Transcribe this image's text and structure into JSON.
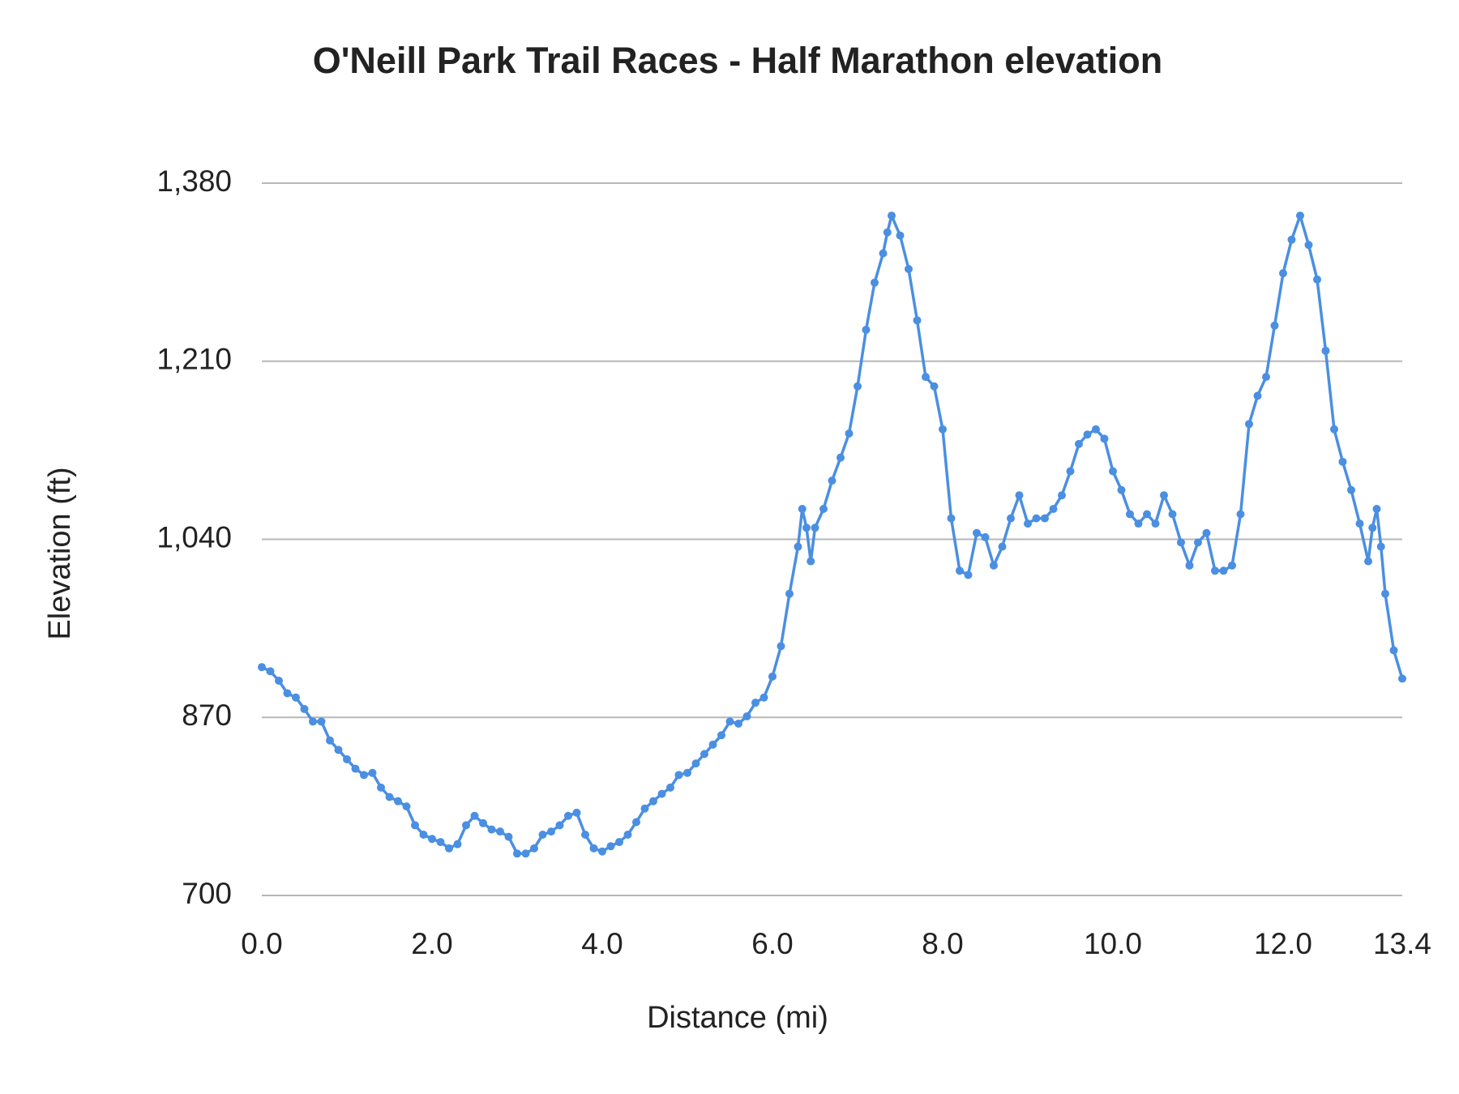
{
  "chart_data": {
    "type": "line",
    "title": "O'Neill Park Trail Races - Half Marathon elevation",
    "x_label": "Distance (mi)",
    "y_label": "Elevation (ft)",
    "color": "#4a8fe2",
    "grid": true,
    "markers": true,
    "xlim": [
      0,
      13.4
    ],
    "ylim": [
      700,
      1380
    ],
    "xticks": [
      {
        "value": 0,
        "label": "0.0"
      },
      {
        "value": 2,
        "label": "2.0"
      },
      {
        "value": 4,
        "label": "4.0"
      },
      {
        "value": 6,
        "label": "6.0"
      },
      {
        "value": 8,
        "label": "8.0"
      },
      {
        "value": 10,
        "label": "10.0"
      },
      {
        "value": 12,
        "label": "12.0"
      },
      13.4
    ],
    "yticks": [
      700,
      870,
      {
        "value": 1040,
        "label": "1,040"
      },
      {
        "value": 1210,
        "label": "1,210"
      },
      {
        "value": 1380,
        "label": "1,380"
      }
    ],
    "x": [
      0,
      0.1,
      0.2,
      0.3,
      0.4,
      0.5,
      0.6,
      0.7,
      0.8,
      0.9,
      1,
      1.1,
      1.2,
      1.3,
      1.4,
      1.5,
      1.6,
      1.7,
      1.8,
      1.9,
      2,
      2.1,
      2.2,
      2.3,
      2.4,
      2.5,
      2.6,
      2.7,
      2.8,
      2.9,
      3,
      3.1,
      3.2,
      3.3,
      3.4,
      3.5,
      3.6,
      3.7,
      3.8,
      3.9,
      4,
      4.1,
      4.2,
      4.3,
      4.4,
      4.5,
      4.6,
      4.7,
      4.8,
      4.9,
      5,
      5.1,
      5.2,
      5.3,
      5.4,
      5.5,
      5.6,
      5.7,
      5.8,
      5.9,
      6,
      6.1,
      6.2,
      6.3,
      6.35,
      6.4,
      6.45,
      6.5,
      6.6,
      6.7,
      6.8,
      6.9,
      7,
      7.1,
      7.2,
      7.3,
      7.35,
      7.4,
      7.5,
      7.6,
      7.7,
      7.8,
      7.9,
      8,
      8.1,
      8.2,
      8.3,
      8.4,
      8.5,
      8.6,
      8.7,
      8.8,
      8.9,
      9,
      9.1,
      9.2,
      9.3,
      9.4,
      9.5,
      9.6,
      9.7,
      9.8,
      9.9,
      10,
      10.1,
      10.2,
      10.3,
      10.4,
      10.5,
      10.6,
      10.7,
      10.8,
      10.9,
      11,
      11.1,
      11.2,
      11.3,
      11.4,
      11.5,
      11.6,
      11.7,
      11.8,
      11.9,
      12,
      12.1,
      12.2,
      12.3,
      12.4,
      12.5,
      12.6,
      12.7,
      12.8,
      12.9,
      13,
      13.05,
      13.1,
      13.15,
      13.2,
      13.3,
      13.4
    ],
    "values": [
      918,
      914,
      905,
      893,
      889,
      878,
      866,
      866,
      848,
      839,
      830,
      821,
      815,
      817,
      803,
      794,
      790,
      785,
      767,
      758,
      754,
      751,
      745,
      749,
      767,
      776,
      769,
      763,
      761,
      756,
      740,
      740,
      745,
      758,
      761,
      767,
      776,
      779,
      758,
      745,
      742,
      747,
      751,
      758,
      770,
      783,
      790,
      797,
      803,
      815,
      817,
      826,
      835,
      844,
      853,
      866,
      864,
      871,
      884,
      889,
      909,
      938,
      988,
      1033,
      1069,
      1051,
      1019,
      1051,
      1069,
      1096,
      1118,
      1141,
      1186,
      1240,
      1285,
      1313,
      1333,
      1349,
      1330,
      1298,
      1249,
      1195,
      1186,
      1145,
      1060,
      1010,
      1006,
      1046,
      1042,
      1015,
      1033,
      1060,
      1082,
      1055,
      1060,
      1060,
      1069,
      1082,
      1105,
      1131,
      1140,
      1145,
      1136,
      1105,
      1087,
      1064,
      1055,
      1064,
      1055,
      1082,
      1064,
      1037,
      1015,
      1037,
      1046,
      1010,
      1010,
      1015,
      1064,
      1150,
      1177,
      1195,
      1244,
      1294,
      1326,
      1349,
      1321,
      1288,
      1220,
      1145,
      1114,
      1087,
      1055,
      1019,
      1051,
      1069,
      1033,
      988,
      934,
      907
    ]
  }
}
